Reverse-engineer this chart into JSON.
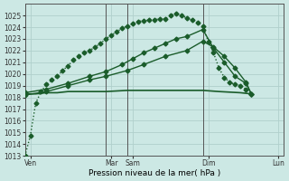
{
  "title": "",
  "xlabel": "Pression niveau de la mer( hPa )",
  "ylabel": "",
  "bg_color": "#cce8e4",
  "grid_color": "#b0d0cc",
  "line_color": "#1a5c2a",
  "xlim": [
    0,
    24
  ],
  "ylim": [
    1013,
    1026
  ],
  "yticks": [
    1013,
    1014,
    1015,
    1016,
    1017,
    1018,
    1019,
    1020,
    1021,
    1022,
    1023,
    1024,
    1025
  ],
  "xtick_labels": [
    "Ven",
    "Mar",
    "Sam",
    "Dim",
    "Lun"
  ],
  "xtick_positions": [
    0.5,
    8,
    10,
    17,
    23.5
  ],
  "vlines": [
    0,
    7.5,
    9.5,
    16.5,
    24
  ],
  "series": [
    {
      "name": "dotted_steep",
      "x": [
        0,
        0.5,
        1,
        1.5,
        2,
        2.5,
        3,
        3.5,
        4,
        4.5,
        5,
        5.5,
        6,
        6.5,
        7,
        7.5,
        8,
        8.5,
        9,
        9.5,
        10,
        10.5,
        11,
        11.5,
        12,
        12.5,
        13,
        13.5,
        14,
        14.5,
        15,
        15.5,
        16,
        16.5,
        17,
        17.5,
        18,
        18.5,
        19,
        19.5,
        20,
        20.5,
        21
      ],
      "y": [
        1013.0,
        1014.7,
        1017.5,
        1018.5,
        1019.1,
        1019.5,
        1019.8,
        1020.3,
        1020.7,
        1021.2,
        1021.5,
        1021.8,
        1022.0,
        1022.3,
        1022.6,
        1023.0,
        1023.3,
        1023.6,
        1023.9,
        1024.1,
        1024.3,
        1024.5,
        1024.55,
        1024.6,
        1024.65,
        1024.7,
        1024.7,
        1025.0,
        1025.2,
        1025.0,
        1024.8,
        1024.6,
        1024.4,
        1024.1,
        1022.8,
        1021.8,
        1020.5,
        1019.7,
        1019.3,
        1019.1,
        1019.0,
        1018.7,
        1018.3
      ],
      "marker": "D",
      "markersize": 2.5,
      "linewidth": 1.0,
      "linestyle": ":"
    },
    {
      "name": "flat_line",
      "x": [
        0,
        1,
        2,
        3,
        4,
        5,
        6,
        7.5,
        9.5,
        11,
        13,
        15,
        16.5,
        18,
        20,
        21
      ],
      "y": [
        1018.3,
        1018.3,
        1018.4,
        1018.4,
        1018.5,
        1018.5,
        1018.5,
        1018.5,
        1018.6,
        1018.6,
        1018.6,
        1018.6,
        1018.6,
        1018.5,
        1018.4,
        1018.3
      ],
      "marker": null,
      "markersize": 0,
      "linewidth": 1.2,
      "linestyle": "-"
    },
    {
      "name": "medium_rise",
      "x": [
        0,
        2,
        4,
        6,
        7.5,
        9.5,
        11,
        13,
        15,
        16.5,
        17.5,
        18.5,
        19.5,
        20.5,
        21
      ],
      "y": [
        1018.2,
        1018.5,
        1019.0,
        1019.5,
        1019.8,
        1020.3,
        1020.8,
        1021.5,
        1022.0,
        1022.8,
        1022.3,
        1021.5,
        1020.5,
        1019.3,
        1018.3
      ],
      "marker": "D",
      "markersize": 2.5,
      "linewidth": 1.0,
      "linestyle": "-"
    },
    {
      "name": "high_rise",
      "x": [
        0,
        2,
        4,
        6,
        7.5,
        9,
        10,
        11,
        12,
        13,
        14,
        15,
        16.5,
        17.5,
        18.5,
        19.5,
        20.5,
        21
      ],
      "y": [
        1018.4,
        1018.7,
        1019.2,
        1019.8,
        1020.2,
        1020.8,
        1021.3,
        1021.8,
        1022.2,
        1022.6,
        1023.0,
        1023.2,
        1023.8,
        1022.2,
        1021.0,
        1019.8,
        1019.2,
        1018.3
      ],
      "marker": "D",
      "markersize": 2.5,
      "linewidth": 1.0,
      "linestyle": "-"
    }
  ]
}
